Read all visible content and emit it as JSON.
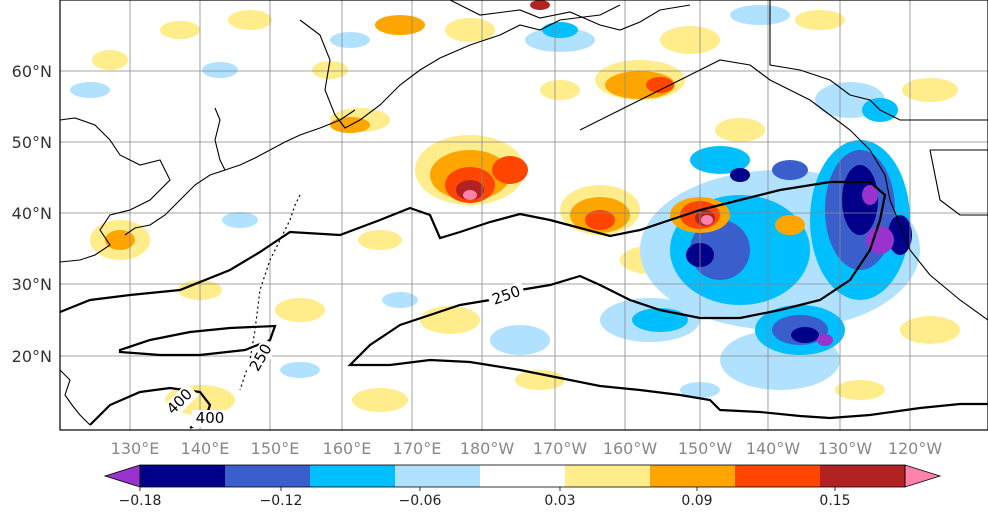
{
  "map": {
    "lat_labels": [
      "60°N",
      "50°N",
      "40°N",
      "30°N",
      "20°N"
    ],
    "lon_labels": [
      "130°E",
      "140°E",
      "150°E",
      "160°E",
      "170°E",
      "180°W",
      "170°W",
      "160°W",
      "150°W",
      "140°W",
      "130°W",
      "120°W"
    ],
    "contour_labels": [
      "250",
      "250",
      "400",
      "400"
    ],
    "grid": true
  },
  "colorbar": {
    "tick_labels": [
      "−0.18",
      "−0.12",
      "−0.06",
      "0.03",
      "0.09",
      "0.15"
    ],
    "bins": [
      {
        "color": "#9a32cd"
      },
      {
        "color": "#00008b"
      },
      {
        "color": "#3a5fcd"
      },
      {
        "color": "#00bfff"
      },
      {
        "color": "#b0e2ff"
      },
      {
        "color": "#ffffff"
      },
      {
        "color": "#ffec8b"
      },
      {
        "color": "#ffa500"
      },
      {
        "color": "#ff4500"
      },
      {
        "color": "#b22222"
      },
      {
        "color": "#ff82ab"
      }
    ],
    "extend": "both"
  }
}
